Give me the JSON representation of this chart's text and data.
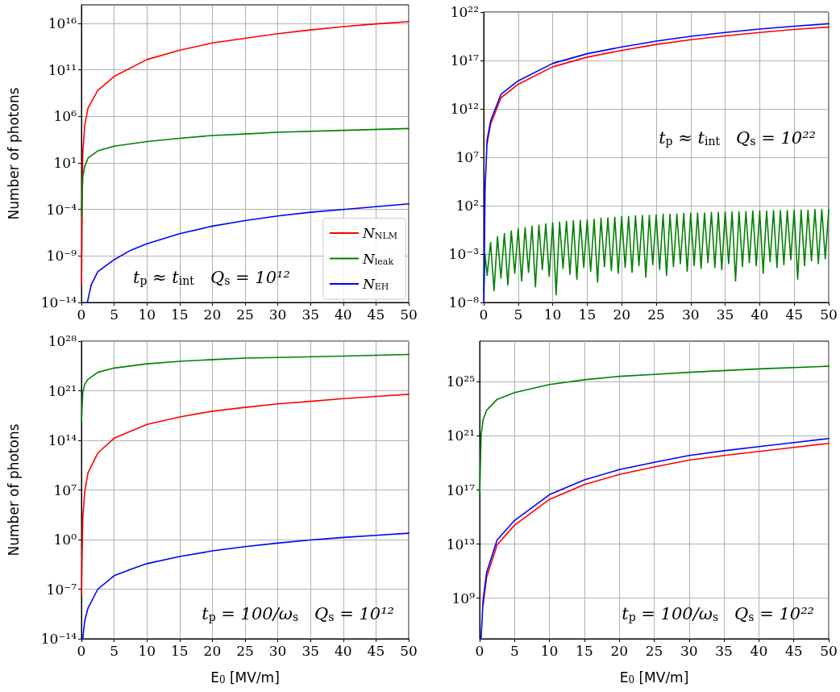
{
  "chart_data": [
    {
      "type": "line",
      "ylabel": "Number of photons",
      "legend": "bottom right",
      "log": true,
      "grid": true,
      "line_style": "solid",
      "xlim": [
        0,
        50
      ],
      "xticks": [
        0,
        5,
        10,
        15,
        20,
        25,
        30,
        35,
        40,
        45,
        50
      ],
      "ylim": [
        1e-14,
        1e+18
      ],
      "yticks": [
        {
          "value": 1e-14,
          "label": "10⁻¹⁴"
        },
        {
          "value": 1e-09,
          "label": "10⁻⁹"
        },
        {
          "value": 0.0001,
          "label": "10⁻⁴"
        },
        {
          "value": 10,
          "label": "10¹"
        },
        {
          "value": 1000000.0,
          "label": "10⁶"
        },
        {
          "value": 100000000000.0,
          "label": "10¹¹"
        },
        {
          "value": 1e+16,
          "label": "10¹⁶"
        }
      ],
      "annotations": [
        "t$_{p}$ ≈ t$_{int}$   Q$_{s}$ = 10¹²"
      ],
      "series": [
        {
          "name": "N$_{NLM}$",
          "color": "#ff0000",
          "x": [
            0.02,
            0.2,
            0.5,
            1,
            2.5,
            5,
            10,
            15,
            20,
            25,
            30,
            35,
            40,
            45,
            50
          ],
          "values": [
            1e-12,
            100.0,
            100000.0,
            7900000.0,
            630000000.0,
            20000000000.0,
            1300000000000.0,
            13000000000000.0,
            79000000000000.0,
            250000000000000.0,
            790000000000000.0,
            2000000000000000.0,
            4500000000000000.0,
            8900000000000000.0,
            1.6e+16
          ]
        },
        {
          "name": "N$_{leak}$",
          "color": "#008000",
          "x": [
            0.02,
            0.2,
            0.5,
            1,
            2.5,
            5,
            10,
            15,
            20,
            25,
            30,
            40,
            50
          ],
          "values": [
            2.5e-05,
            0.32,
            4,
            32,
            200,
            630,
            2000,
            4500,
            8900,
            13000.0,
            20000.0,
            32000.0,
            50000.0
          ]
        },
        {
          "name": "N$_{EH}$",
          "color": "#0000ff",
          "x": [
            0.9,
            1.5,
            2.5,
            5,
            7.5,
            10,
            15,
            20,
            25,
            30,
            35,
            40,
            45,
            50
          ],
          "values": [
            1e-14,
            7.9e-13,
            2e-11,
            4e-10,
            4e-09,
            2e-08,
            2.5e-07,
            1.6e-06,
            6.3e-06,
            2e-05,
            5e-05,
            0.0001,
            0.0002,
            0.0004
          ]
        }
      ]
    },
    {
      "type": "line",
      "log": true,
      "grid": true,
      "line_style": "solid",
      "xlim": [
        0,
        50
      ],
      "xticks": [
        0,
        5,
        10,
        15,
        20,
        25,
        30,
        35,
        40,
        45,
        50
      ],
      "ylim": [
        1e-08,
        1e+22
      ],
      "yticks": [
        {
          "value": 1e-08,
          "label": "10⁻⁸"
        },
        {
          "value": 0.001,
          "label": "10⁻³"
        },
        {
          "value": 100,
          "label": "10²"
        },
        {
          "value": 10000000.0,
          "label": "10⁷"
        },
        {
          "value": 1000000000000.0,
          "label": "10¹²"
        },
        {
          "value": 1e+17,
          "label": "10¹⁷"
        },
        {
          "value": 1e+22,
          "label": "10²²"
        }
      ],
      "annotations": [
        "t$_{p}$ ≈ t$_{int}$   Q$_{s}$ = 10²²"
      ],
      "series": [
        {
          "color": "#008000",
          "x": [
            0,
            0.2,
            0.5,
            1,
            1.5,
            2,
            2.5,
            3,
            3.5,
            4,
            4.5,
            5,
            5.5,
            6,
            6.5,
            7,
            7.5,
            8,
            8.5,
            9,
            9.5,
            10,
            10.5,
            11,
            11.5,
            12,
            12.5,
            13,
            13.5,
            14,
            14.5,
            15,
            15.5,
            16,
            16.5,
            17,
            17.5,
            18,
            18.5,
            19,
            19.5,
            20,
            20.5,
            21,
            21.5,
            22,
            22.5,
            23,
            23.5,
            24,
            24.5,
            25,
            25.5,
            26,
            26.5,
            27,
            27.5,
            28,
            28.5,
            29,
            29.5,
            30,
            30.5,
            31,
            31.5,
            32,
            32.5,
            33,
            33.5,
            34,
            34.5,
            35,
            35.5,
            36,
            36.5,
            37,
            37.5,
            38,
            38.5,
            39,
            39.5,
            40,
            40.5,
            41,
            41.5,
            42,
            42.5,
            43,
            43.5,
            44,
            44.5,
            45,
            45.5,
            46,
            46.5,
            47,
            47.5,
            48,
            48.5,
            49,
            49.5,
            50
          ],
          "values": [
            1e-07,
            0.001,
            6.3e-06,
            0.016,
            1.6e-07,
            0.063,
            3.2e-06,
            0.13,
            6.3e-07,
            0.25,
            1e-05,
            0.4,
            1.6e-06,
            0.56,
            1.3e-05,
            0.79,
            4e-07,
            1,
            2.5e-05,
            1.3,
            5e-06,
            1.8,
            6.3e-08,
            2,
            3.2e-05,
            2.5,
            7.9e-06,
            2.8,
            2.5e-06,
            3.2,
            4e-05,
            3.5,
            1.6e-05,
            4,
            1.3e-06,
            5,
            5e-05,
            5.6,
            2e-05,
            6.3,
            1e-05,
            7.9,
            4e-05,
            7.9,
            1.3e-05,
            8.9,
            6.3e-05,
            10,
            4e-06,
            10,
            7.9e-05,
            11,
            2.5e-05,
            13,
            6.3e-06,
            13,
            5e-05,
            14,
            0.0001,
            16,
            1.6e-05,
            16,
            6.3e-05,
            18,
            3.2e-05,
            18,
            0.00013,
            20,
            4e-05,
            20,
            2.5e-05,
            22,
            0.0001,
            22,
            1.6e-06,
            25,
            5e-05,
            25,
            0.00013,
            28,
            6.3e-05,
            28,
            1e-05,
            28,
            0.00016,
            32,
            4e-05,
            32,
            7.9e-05,
            32,
            0.00025,
            35,
            2.5e-06,
            35,
            6.3e-05,
            35,
            0.0002,
            40,
            0.0001,
            40,
            0.00032,
            40
          ]
        },
        {
          "color": "#ff0000",
          "x": [
            0.5,
            1,
            2.5,
            5,
            10,
            15,
            20,
            25,
            30,
            35,
            40,
            45,
            50
          ],
          "values": [
            250000000.0,
            25000000000.0,
            14000000000000.0,
            350000000000000.0,
            2.2e+16,
            2.2e+17,
            1.1e+18,
            4.5e+18,
            1.4e+19,
            3.5e+19,
            7.9e+19,
            1.6e+20,
            2.8e+20
          ]
        },
        {
          "color": "#0000ff",
          "x": [
            0.03,
            0.2,
            0.5,
            1,
            2.5,
            5,
            10,
            15,
            20,
            25,
            30,
            35,
            40,
            45,
            50
          ],
          "values": [
            1e-08,
            6300.0,
            630000000.0,
            56000000000.0,
            32000000000000.0,
            790000000000000.0,
            5e+16,
            5e+17,
            2.5e+18,
            1e+19,
            3.2e+19,
            7.9e+19,
            1.8e+20,
            3.5e+20,
            6.3e+20
          ]
        }
      ]
    },
    {
      "type": "line",
      "xlabel": "E$_{0}$ [MV/m]",
      "ylabel": "Number of photons",
      "log": true,
      "grid": true,
      "line_style": "solid",
      "xlim": [
        0,
        50
      ],
      "xticks": [
        0,
        5,
        10,
        15,
        20,
        25,
        30,
        35,
        40,
        45,
        50
      ],
      "ylim": [
        1e-14,
        1e+28
      ],
      "yticks": [
        {
          "value": 1e-14,
          "label": "10⁻¹⁴"
        },
        {
          "value": 1e-07,
          "label": "10⁻⁷"
        },
        {
          "value": 1,
          "label": "10⁰"
        },
        {
          "value": 10000000.0,
          "label": "10⁷"
        },
        {
          "value": 100000000000000.0,
          "label": "10¹⁴"
        },
        {
          "value": 1e+21,
          "label": "10²¹"
        },
        {
          "value": 1e+28,
          "label": "10²⁸"
        }
      ],
      "annotations": [
        "t$_{p}$ = 100/ω$_{s}$   Q$_{s}$ = 10¹²"
      ],
      "series": [
        {
          "color": "#008000",
          "x": [
            0.02,
            0.2,
            0.5,
            1,
            2.5,
            5,
            10,
            15,
            20,
            25,
            30,
            40,
            50
          ],
          "values": [
            5.6e+16,
            5e+20,
            7.9e+21,
            4e+22,
            4e+23,
            1.6e+24,
            6.3e+24,
            1.4e+25,
            2.5e+25,
            4e+25,
            5e+25,
            7.9e+25,
            1.3e+26
          ]
        },
        {
          "color": "#ff0000",
          "x": [
            0.02,
            0.2,
            0.5,
            1,
            2.5,
            5,
            10,
            15,
            20,
            25,
            30,
            35,
            40,
            45,
            50
          ],
          "values": [
            2e-08,
            790.0,
            5000000.0,
            2500000000.0,
            1600000000000.0,
            200000000000000.0,
            1.8e+16,
            2e+17,
            1.3e+18,
            4.5e+18,
            1.4e+19,
            3.2e+19,
            7.9e+19,
            1.6e+20,
            3.2e+20
          ]
        },
        {
          "color": "#0000ff",
          "x": [
            0.2,
            0.5,
            1,
            2.5,
            5,
            7.5,
            10,
            15,
            20,
            25,
            30,
            35,
            40,
            45,
            50
          ],
          "values": [
            1e-14,
            3.2e-12,
            2e-10,
            1e-07,
            7.9e-06,
            6.3e-05,
            0.0004,
            0.004,
            0.025,
            0.1,
            0.32,
            0.89,
            2,
            4,
            7.9
          ]
        }
      ]
    },
    {
      "type": "line",
      "xlabel": "E$_{0}$ [MV/m]",
      "log": true,
      "grid": true,
      "line_style": "solid",
      "xlim": [
        0,
        50
      ],
      "xticks": [
        0,
        5,
        10,
        15,
        20,
        25,
        30,
        35,
        40,
        45,
        50
      ],
      "ylim": [
        1000000.0,
        1e+28
      ],
      "yticks": [
        {
          "value": 1000000000.0,
          "label": "10⁹"
        },
        {
          "value": 10000000000000.0,
          "label": "10¹³"
        },
        {
          "value": 1e+17,
          "label": "10¹⁷"
        },
        {
          "value": 1e+21,
          "label": "10²¹"
        },
        {
          "value": 1e+25,
          "label": "10²⁵"
        }
      ],
      "annotations": [
        "t$_{p}$ = 100/ω$_{s}$   Q$_{s}$ = 10²²"
      ],
      "series": [
        {
          "color": "#008000",
          "x": [
            0.02,
            0.2,
            0.5,
            1,
            2.5,
            5,
            10,
            15,
            20,
            25,
            30,
            40,
            50
          ],
          "values": [
            7.1e+16,
            1e+21,
            1.6e+22,
            7.9e+22,
            5e+23,
            1.6e+24,
            6.3e+24,
            1.4e+25,
            2.5e+25,
            3.5e+25,
            5e+25,
            8.9e+25,
            1.4e+26
          ]
        },
        {
          "color": "#ff0000",
          "x": [
            0.5,
            1,
            2.5,
            5,
            10,
            15,
            20,
            25,
            30,
            35,
            40,
            45,
            50
          ],
          "values": [
            320000000.0,
            35000000000.0,
            8900000000000.0,
            250000000000000.0,
            2e+16,
            2.5e+17,
            1.4e+18,
            5e+18,
            1.6e+19,
            3.5e+19,
            7.1e+19,
            1.4e+20,
            2.8e+20
          ]
        },
        {
          "color": "#0000ff",
          "x": [
            0.2,
            0.5,
            1,
            2.5,
            5,
            10,
            15,
            20,
            25,
            30,
            35,
            40,
            45,
            50
          ],
          "values": [
            1000000.0,
            790000000.0,
            79000000000.0,
            20000000000000.0,
            560000000000000.0,
            4.5e+16,
            5.6e+17,
            3.2e+18,
            1.1e+19,
            3.5e+19,
            7.9e+19,
            1.6e+20,
            3.2e+20,
            6.3e+20
          ]
        }
      ]
    }
  ]
}
